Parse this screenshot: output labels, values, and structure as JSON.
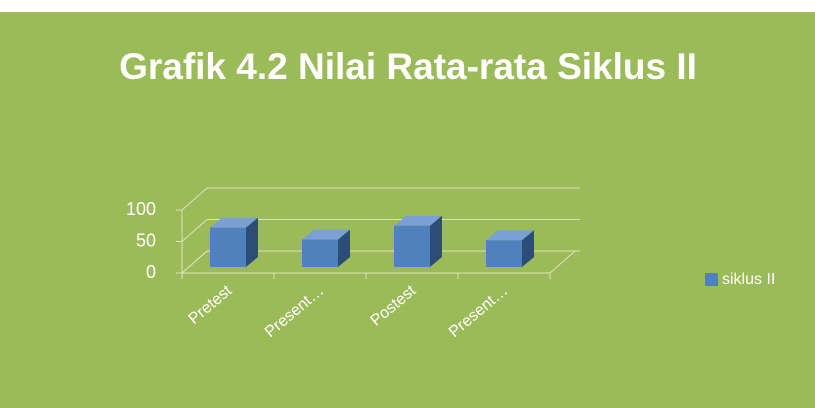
{
  "chart_data": {
    "type": "bar3d",
    "title": "Grafik 4.2 Nilai Rata-rata Siklus II",
    "categories": [
      "Pretest",
      "Present…",
      "Postest",
      "Present…"
    ],
    "series": [
      {
        "name": "siklus II",
        "color": "#4f81bd",
        "values": [
          72,
          53,
          75,
          52
        ]
      }
    ],
    "ylim": [
      0,
      100
    ],
    "yticks": [
      0,
      50,
      100
    ],
    "grid": true,
    "legend": "right"
  }
}
